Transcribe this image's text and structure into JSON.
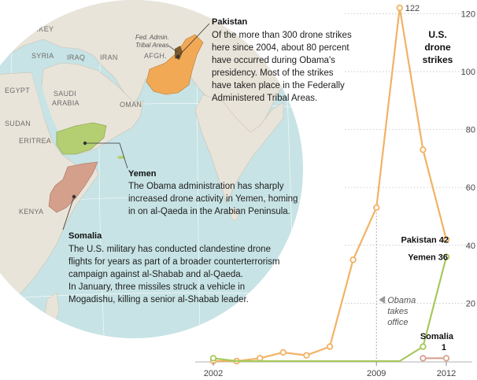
{
  "map": {
    "countries": [
      "TURKEY",
      "SYRIA",
      "IRAQ",
      "IRAN",
      "AFGH.",
      "EGYPT",
      "SAUDI",
      "ARABIA",
      "OMAN",
      "SUDAN",
      "ERITREA",
      "KENYA"
    ],
    "tribal_label_line1": "Fed. Admin.",
    "tribal_label_line2": "Tribal Areas",
    "colors": {
      "ocean": "#c7e3e5",
      "land": "#e9e4d9",
      "pakistan": "#f1a955",
      "yemen": "#b4cf72",
      "somalia": "#d49f8b",
      "tribal": "#7d5a2e"
    }
  },
  "annotations": {
    "pakistan": {
      "title": "Pakistan",
      "lines": [
        "Of the more than 300 drone strikes",
        "here since 2004, about 80 percent",
        "have occurred during Obama's",
        "presidency. Most of the strikes",
        "have taken place in the Federally",
        "Administered Tribal Areas."
      ]
    },
    "yemen": {
      "title": "Yemen",
      "lines": [
        "The Obama administration has sharply",
        "increased drone activity in Yemen, homing",
        "in on al-Qaeda in the Arabian Peninsula."
      ]
    },
    "somalia": {
      "title": "Somalia",
      "lines": [
        "The U.S. military has conducted clandestine drone",
        "flights for years as part of a broader counterterrorism",
        "campaign against al-Shabab and al-Qaeda.",
        "In January, three missiles struck a vehicle in",
        "Mogadishu, killing a senior al-Shabab leader."
      ]
    }
  },
  "chart_data": {
    "type": "line",
    "title_lines": [
      "U.S.",
      "drone",
      "strikes"
    ],
    "x": [
      2002,
      2003,
      2004,
      2005,
      2006,
      2007,
      2008,
      2009,
      2010,
      2011,
      2012
    ],
    "xticks": [
      "2002",
      "2009",
      "2012"
    ],
    "yticks": [
      "20",
      "40",
      "60",
      "80",
      "100",
      "120"
    ],
    "ylim": [
      0,
      125
    ],
    "grid": true,
    "series": [
      {
        "name": "Pakistan",
        "color": "#f2b264",
        "values": [
          0,
          0,
          1,
          3,
          2,
          5,
          35,
          53,
          122,
          73,
          42
        ]
      },
      {
        "name": "Yemen",
        "color": "#a6c95d",
        "values": [
          1,
          0,
          0,
          0,
          0,
          0,
          0,
          0,
          0,
          5,
          36
        ]
      },
      {
        "name": "Somalia",
        "color": "#d9a190",
        "values": [
          null,
          null,
          null,
          null,
          null,
          null,
          null,
          null,
          null,
          1,
          1
        ]
      }
    ],
    "point_labels": {
      "peak": "122",
      "pakistan_end": "Pakistan 42",
      "yemen_end": "Yemen  36",
      "somalia_name": "Somalia",
      "somalia_value": "1"
    },
    "event": {
      "x": 2009,
      "lines": [
        "Obama",
        "takes",
        "office"
      ]
    }
  }
}
